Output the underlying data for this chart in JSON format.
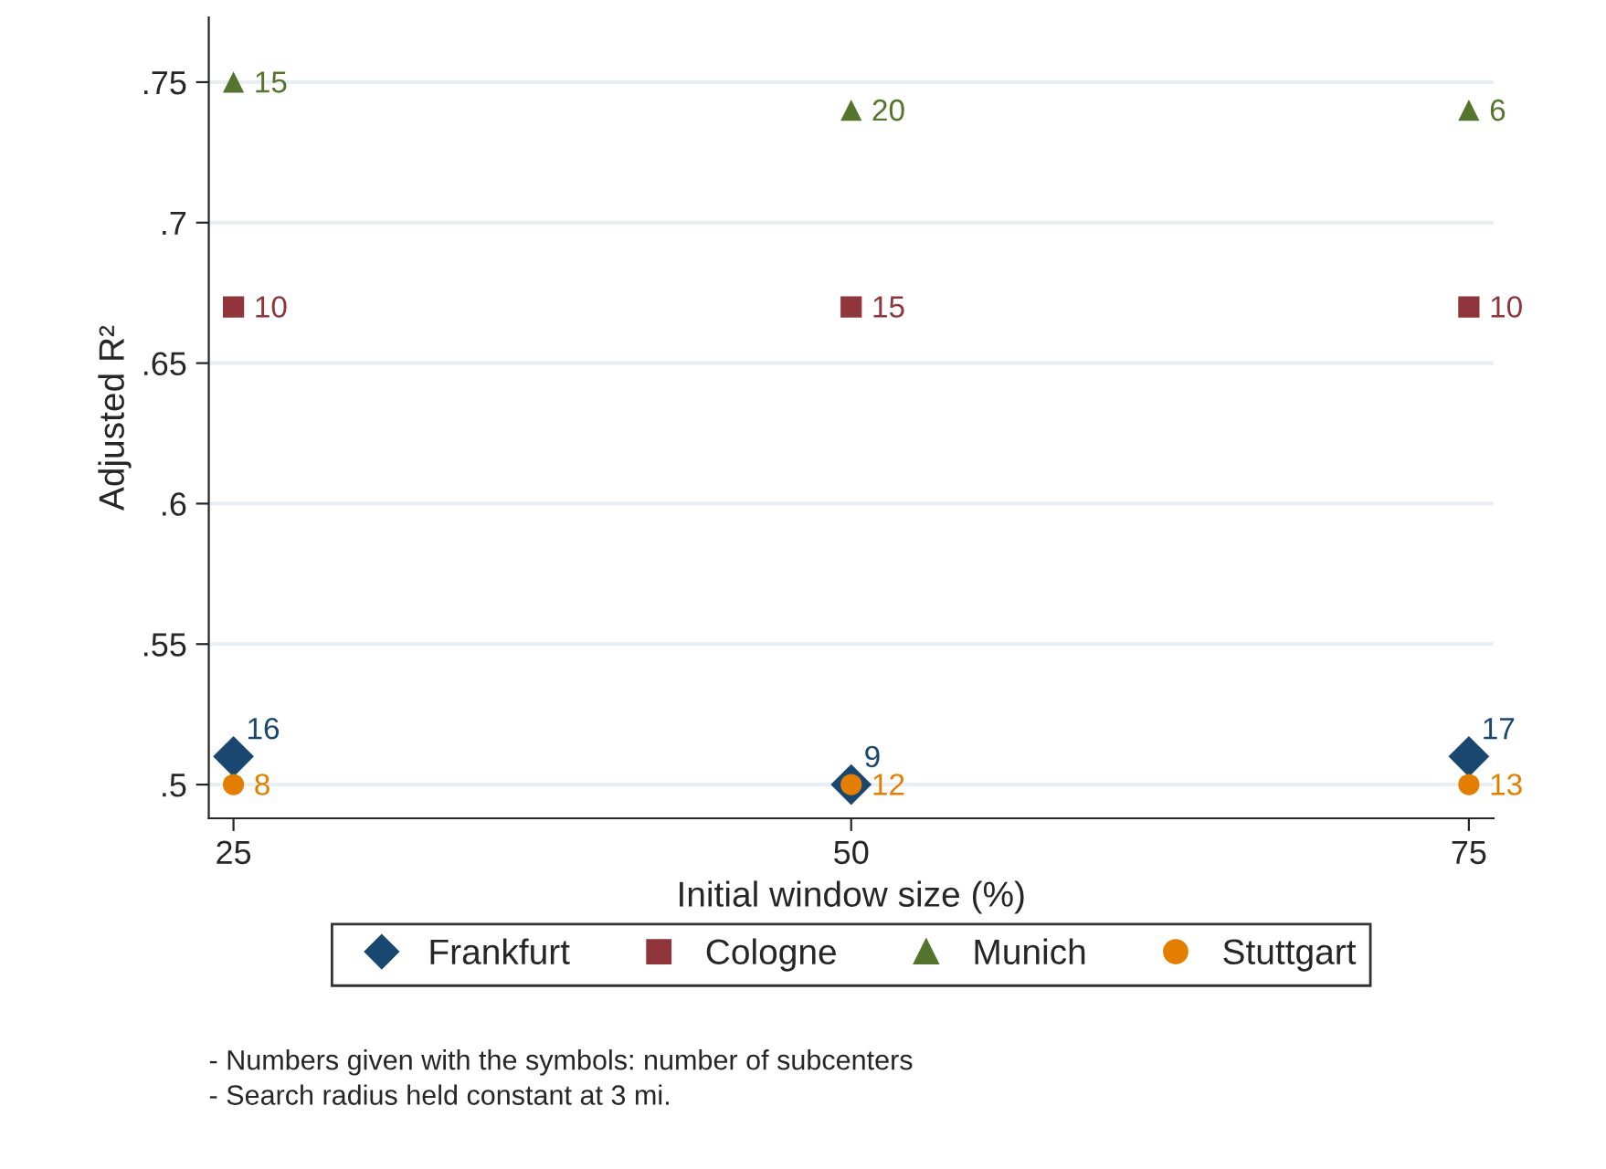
{
  "chart_data": {
    "type": "scatter",
    "xlabel": "Initial window size (%)",
    "ylabel": "Adjusted R²",
    "x": [
      25,
      50,
      75
    ],
    "series": [
      {
        "name": "Frankfurt",
        "color": "#1a476f",
        "marker": "diamond",
        "values": [
          0.51,
          0.5,
          0.51
        ]
      },
      {
        "name": "Cologne",
        "color": "#90353b",
        "marker": "square",
        "values": [
          0.67,
          0.67,
          0.67
        ]
      },
      {
        "name": "Munich",
        "color": "#55752f",
        "marker": "triangle",
        "values": [
          0.75,
          0.74,
          0.74
        ]
      },
      {
        "name": "Stuttgart",
        "color": "#e37e00",
        "marker": "circle",
        "values": [
          0.5,
          0.5,
          0.5
        ]
      }
    ],
    "xlim": [
      24,
      76
    ],
    "xticks": [
      25,
      50,
      75
    ],
    "ylim": [
      0.488,
      0.773
    ],
    "yticks": [
      {
        "value": 0.5,
        "label": ".5"
      },
      {
        "value": 0.55,
        "label": ".55"
      },
      {
        "value": 0.6,
        "label": ".6"
      },
      {
        "value": 0.65,
        "label": ".65"
      },
      {
        "value": 0.7,
        "label": ".7"
      },
      {
        "value": 0.75,
        "label": ".75"
      }
    ],
    "grid": "y",
    "legend": "bottom",
    "annotations": [
      {
        "text": "16",
        "x": 25,
        "y": 0.51
      },
      {
        "text": "9",
        "x": 50,
        "y": 0.5
      },
      {
        "text": "17",
        "x": 75,
        "y": 0.51
      },
      {
        "text": "10",
        "x": 25,
        "y": 0.67
      },
      {
        "text": "15",
        "x": 50,
        "y": 0.67
      },
      {
        "text": "10",
        "x": 75,
        "y": 0.67
      },
      {
        "text": "15",
        "x": 25,
        "y": 0.75
      },
      {
        "text": "20",
        "x": 50,
        "y": 0.74
      },
      {
        "text": "6",
        "x": 75,
        "y": 0.74
      },
      {
        "text": "8",
        "x": 25,
        "y": 0.5
      },
      {
        "text": "12",
        "x": 50,
        "y": 0.5
      },
      {
        "text": "13",
        "x": 75,
        "y": 0.5
      },
      "- Numbers given with the symbols: number of subcenters",
      "- Search radius held constant at 3 mi."
    ]
  }
}
